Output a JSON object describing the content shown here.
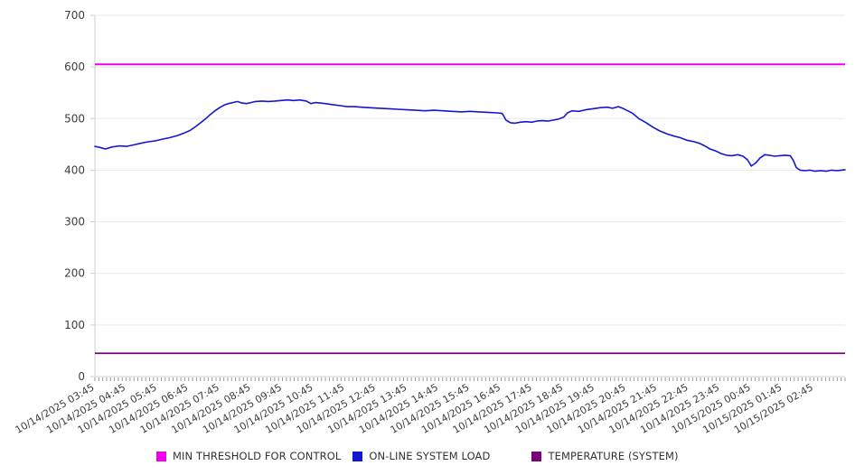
{
  "chart_data": {
    "type": "line",
    "title": "",
    "grid": true,
    "legend_position": "bottom",
    "colors": {
      "gridline": "#e8e8e8",
      "axis_line": "#cfcfcf",
      "minor_tick": "#999999",
      "tick_text": "#3d3d3d"
    },
    "y_axis": {
      "min": 0,
      "max": 700,
      "tick_step": 100,
      "ticks": [
        0,
        100,
        200,
        300,
        400,
        500,
        600,
        700
      ]
    },
    "x_axis": {
      "minor_ticks_per_hour": 8,
      "label_rotation_deg": -30,
      "labels": [
        "10/14/2025 03:45",
        "10/14/2025 04:45",
        "10/14/2025 05:45",
        "10/14/2025 06:45",
        "10/14/2025 07:45",
        "10/14/2025 08:45",
        "10/14/2025 09:45",
        "10/14/2025 10:45",
        "10/14/2025 11:45",
        "10/14/2025 12:45",
        "10/14/2025 13:45",
        "10/14/2025 14:45",
        "10/14/2025 15:45",
        "10/14/2025 16:45",
        "10/14/2025 17:45",
        "10/14/2025 18:45",
        "10/14/2025 19:45",
        "10/14/2025 20:45",
        "10/14/2025 21:45",
        "10/14/2025 22:45",
        "10/14/2025 23:45",
        "10/15/2025 00:45",
        "10/15/2025 01:45",
        "10/15/2025 02:45"
      ]
    },
    "series": [
      {
        "name": "MIN THRESHOLD FOR CONTROL",
        "kind": "horizontal-line",
        "value": 605,
        "color": "#ee00ee",
        "line_width": 2
      },
      {
        "name": "ON-LINE SYSTEM LOAD",
        "kind": "line",
        "color": "#1515d8",
        "line_width": 1.6,
        "points": [
          [
            0.0,
            446
          ],
          [
            0.007,
            444
          ],
          [
            0.014,
            441
          ],
          [
            0.023,
            445
          ],
          [
            0.033,
            447
          ],
          [
            0.042,
            446
          ],
          [
            0.052,
            449
          ],
          [
            0.061,
            452
          ],
          [
            0.071,
            455
          ],
          [
            0.081,
            457
          ],
          [
            0.09,
            460
          ],
          [
            0.1,
            463
          ],
          [
            0.11,
            467
          ],
          [
            0.119,
            472
          ],
          [
            0.127,
            477
          ],
          [
            0.134,
            484
          ],
          [
            0.141,
            492
          ],
          [
            0.148,
            500
          ],
          [
            0.154,
            508
          ],
          [
            0.16,
            515
          ],
          [
            0.166,
            521
          ],
          [
            0.172,
            526
          ],
          [
            0.178,
            529
          ],
          [
            0.184,
            531
          ],
          [
            0.19,
            533
          ],
          [
            0.196,
            530
          ],
          [
            0.202,
            529
          ],
          [
            0.208,
            531
          ],
          [
            0.214,
            533
          ],
          [
            0.223,
            534
          ],
          [
            0.231,
            533
          ],
          [
            0.24,
            534
          ],
          [
            0.248,
            535
          ],
          [
            0.257,
            536
          ],
          [
            0.265,
            535
          ],
          [
            0.273,
            536
          ],
          [
            0.282,
            534
          ],
          [
            0.288,
            529
          ],
          [
            0.294,
            531
          ],
          [
            0.3,
            530
          ],
          [
            0.307,
            529
          ],
          [
            0.317,
            527
          ],
          [
            0.327,
            525
          ],
          [
            0.336,
            523
          ],
          [
            0.346,
            523
          ],
          [
            0.355,
            522
          ],
          [
            0.367,
            521
          ],
          [
            0.38,
            520
          ],
          [
            0.392,
            519
          ],
          [
            0.404,
            518
          ],
          [
            0.416,
            517
          ],
          [
            0.428,
            516
          ],
          [
            0.44,
            515
          ],
          [
            0.452,
            516
          ],
          [
            0.464,
            515
          ],
          [
            0.476,
            514
          ],
          [
            0.488,
            513
          ],
          [
            0.5,
            514
          ],
          [
            0.512,
            513
          ],
          [
            0.524,
            512
          ],
          [
            0.536,
            511
          ],
          [
            0.543,
            510
          ],
          [
            0.548,
            497
          ],
          [
            0.554,
            492
          ],
          [
            0.56,
            491
          ],
          [
            0.567,
            493
          ],
          [
            0.575,
            494
          ],
          [
            0.582,
            493
          ],
          [
            0.589,
            495
          ],
          [
            0.596,
            496
          ],
          [
            0.604,
            495
          ],
          [
            0.611,
            497
          ],
          [
            0.618,
            499
          ],
          [
            0.625,
            503
          ],
          [
            0.63,
            511
          ],
          [
            0.636,
            515
          ],
          [
            0.645,
            514
          ],
          [
            0.654,
            517
          ],
          [
            0.664,
            519
          ],
          [
            0.673,
            521
          ],
          [
            0.683,
            522
          ],
          [
            0.69,
            520
          ],
          [
            0.698,
            523
          ],
          [
            0.705,
            519
          ],
          [
            0.717,
            510
          ],
          [
            0.725,
            500
          ],
          [
            0.735,
            492
          ],
          [
            0.743,
            484
          ],
          [
            0.753,
            476
          ],
          [
            0.763,
            470
          ],
          [
            0.772,
            466
          ],
          [
            0.78,
            463
          ],
          [
            0.789,
            458
          ],
          [
            0.799,
            455
          ],
          [
            0.806,
            452
          ],
          [
            0.813,
            447
          ],
          [
            0.82,
            441
          ],
          [
            0.828,
            437
          ],
          [
            0.835,
            432
          ],
          [
            0.842,
            429
          ],
          [
            0.849,
            428
          ],
          [
            0.857,
            430
          ],
          [
            0.864,
            427
          ],
          [
            0.87,
            420
          ],
          [
            0.875,
            408
          ],
          [
            0.881,
            414
          ],
          [
            0.887,
            424
          ],
          [
            0.893,
            430
          ],
          [
            0.899,
            429
          ],
          [
            0.906,
            427
          ],
          [
            0.913,
            428
          ],
          [
            0.92,
            429
          ],
          [
            0.927,
            428
          ],
          [
            0.931,
            419
          ],
          [
            0.935,
            405
          ],
          [
            0.94,
            400
          ],
          [
            0.946,
            399
          ],
          [
            0.953,
            400
          ],
          [
            0.96,
            398
          ],
          [
            0.967,
            399
          ],
          [
            0.975,
            398
          ],
          [
            0.982,
            400
          ],
          [
            0.989,
            399
          ],
          [
            0.995,
            400
          ],
          [
            1.0,
            401
          ]
        ]
      },
      {
        "name": "TEMPERATURE (SYSTEM)",
        "kind": "horizontal-line",
        "value": 45,
        "color": "#760476",
        "line_width": 1.8
      }
    ]
  }
}
